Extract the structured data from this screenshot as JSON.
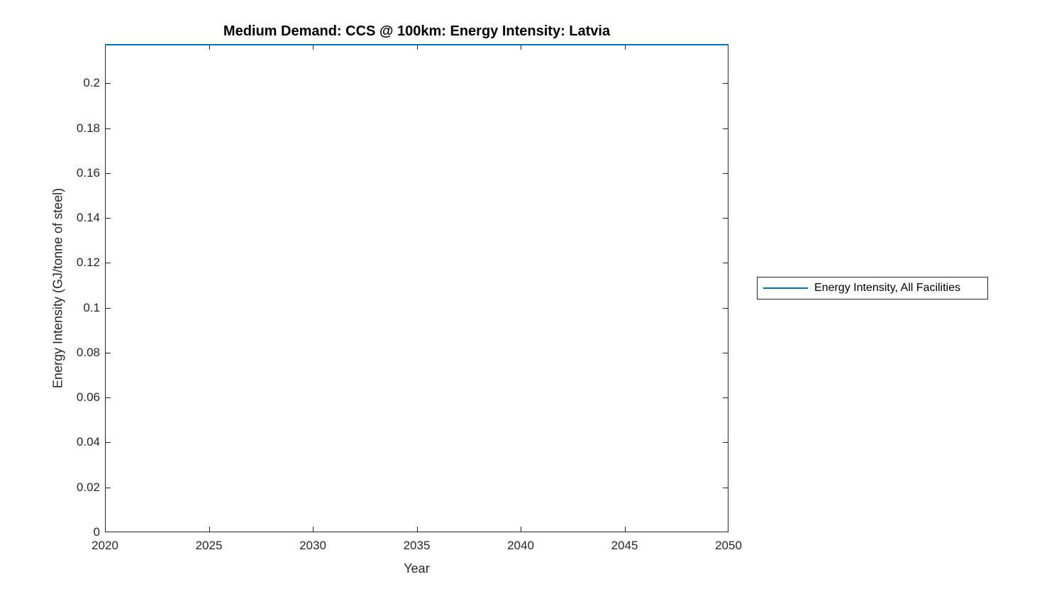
{
  "figure": {
    "background": "#ffffff"
  },
  "chart_data": {
    "type": "line",
    "title": "Medium Demand: CCS @ 100km: Energy Intensity: Latvia",
    "xlabel": "Year",
    "ylabel": "Energy Intensity (GJ/tonne of steel)",
    "xlim": [
      2020,
      2050
    ],
    "ylim": [
      0,
      0.2175
    ],
    "xticks": [
      2020,
      2025,
      2030,
      2035,
      2040,
      2045,
      2050
    ],
    "xtick_labels": [
      "2020",
      "2025",
      "2030",
      "2035",
      "2040",
      "2045",
      "2050"
    ],
    "yticks": [
      0,
      0.02,
      0.04,
      0.06,
      0.08,
      0.1,
      0.12,
      0.14,
      0.16,
      0.18,
      0.2
    ],
    "ytick_labels": [
      "0",
      "0.02",
      "0.04",
      "0.06",
      "0.08",
      "0.1",
      "0.12",
      "0.14",
      "0.16",
      "0.18",
      "0.2"
    ],
    "grid": false,
    "axis_color": "#262626",
    "legend": {
      "position": "outside-right",
      "entries": [
        {
          "label": "Energy Intensity, All Facilities",
          "color": "#0072bd"
        }
      ]
    },
    "series": [
      {
        "name": "Energy Intensity, All Facilities",
        "color": "#0072bd",
        "x": [
          2020,
          2025,
          2030,
          2035,
          2040,
          2045,
          2050
        ],
        "y": [
          0.2175,
          0.2175,
          0.2175,
          0.2175,
          0.2175,
          0.2175,
          0.2175
        ]
      }
    ]
  }
}
